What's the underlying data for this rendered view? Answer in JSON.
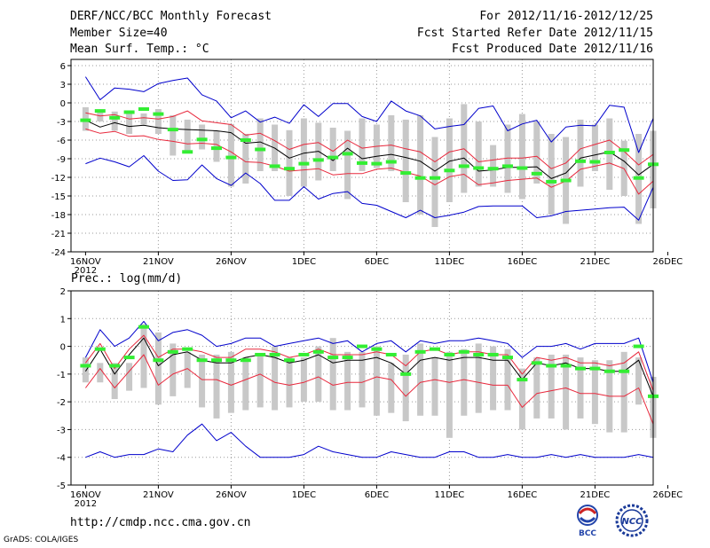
{
  "header": {
    "title": "DERF/NCC/BCC Monthly Forecast",
    "member_size": "Member Size=40",
    "period": "For 2012/11/16-2012/12/25",
    "started": "Fcst Started Refer Date 2012/11/15",
    "variable": "Mean Surf. Temp.: °C",
    "produced": "Fcst Produced Date 2012/11/16"
  },
  "footer": {
    "url": "http://cmdp.ncc.cma.gov.cn",
    "credit": "GrADS: COLA/IGES",
    "logo_bcc": "BCC",
    "logo_ncc": "NCC"
  },
  "colors": {
    "ensemble_mean": "#000000",
    "spread": "#e8283c",
    "extremes": "#0000cc",
    "member_box": "#c8c8c8",
    "median": "#33ee33",
    "grid": "#999999"
  },
  "chart_data": [
    {
      "type": "line",
      "title": "Mean Surf. Temp.: °C",
      "x_tick_labels": [
        "16NOV",
        "21NOV",
        "26NOV",
        "1DEC",
        "6DEC",
        "11DEC",
        "16DEC",
        "21DEC",
        "26DEC"
      ],
      "year_label": "2012",
      "ylim": [
        -24,
        7
      ],
      "y_ticks": [
        6,
        3,
        0,
        -3,
        -6,
        -9,
        -12,
        -15,
        -18,
        -21,
        -24
      ],
      "days": 40,
      "series": [
        {
          "name": "ensemble mean",
          "values": [
            -2.8,
            -3.9,
            -3.2,
            -3.8,
            -3.6,
            -4.0,
            -4.2,
            -4.3,
            -4.4,
            -4.5,
            -4.8,
            -6.5,
            -6.3,
            -7.3,
            -8.9,
            -8.1,
            -7.8,
            -9.3,
            -7.3,
            -9.0,
            -8.6,
            -8.3,
            -8.8,
            -9.4,
            -11.0,
            -9.4,
            -8.9,
            -11.0,
            -10.8,
            -10.4,
            -10.4,
            -10.3,
            -12.2,
            -11.3,
            -8.9,
            -8.4,
            -7.9,
            -9.4,
            -11.6,
            -9.9
          ]
        },
        {
          "name": "upper spread",
          "values": [
            -1.6,
            -2.1,
            -1.9,
            -2.6,
            -2.4,
            -2.6,
            -2.2,
            -1.3,
            -2.9,
            -3.2,
            -3.5,
            -5.2,
            -4.9,
            -6.1,
            -7.5,
            -6.7,
            -6.4,
            -7.8,
            -6.0,
            -7.3,
            -7.0,
            -6.8,
            -7.4,
            -7.9,
            -9.5,
            -7.9,
            -7.4,
            -9.5,
            -9.2,
            -8.9,
            -8.9,
            -8.6,
            -10.6,
            -9.7,
            -7.4,
            -6.7,
            -6.0,
            -7.8,
            -10.0,
            -8.3
          ]
        },
        {
          "name": "lower spread",
          "values": [
            -4.2,
            -4.9,
            -4.6,
            -5.4,
            -5.3,
            -5.9,
            -6.2,
            -6.6,
            -6.5,
            -6.7,
            -7.9,
            -9.5,
            -9.6,
            -10.2,
            -11.0,
            -10.8,
            -10.6,
            -11.6,
            -11.4,
            -11.4,
            -10.7,
            -10.5,
            -11.2,
            -11.8,
            -13.2,
            -11.9,
            -11.5,
            -13.2,
            -12.9,
            -12.5,
            -12.3,
            -12.1,
            -13.6,
            -12.6,
            -10.7,
            -10.2,
            -9.7,
            -10.6,
            -14.7,
            -12.6
          ]
        },
        {
          "name": "member maximum",
          "values": [
            4.2,
            0.5,
            2.4,
            2.2,
            1.8,
            3.1,
            3.6,
            4.0,
            1.3,
            0.3,
            -2.4,
            -1.3,
            -3.1,
            -2.3,
            -3.3,
            -0.3,
            -2.2,
            -0.1,
            -0.1,
            -2.2,
            -3.0,
            0.3,
            -1.3,
            -2.1,
            -4.2,
            -3.8,
            -3.5,
            -0.9,
            -0.5,
            -4.5,
            -3.4,
            -2.8,
            -6.3,
            -3.9,
            -3.6,
            -3.7,
            -0.4,
            -0.7,
            -8.0,
            -2.5
          ]
        },
        {
          "name": "member minimum",
          "values": [
            -9.8,
            -8.9,
            -9.5,
            -10.3,
            -8.5,
            -11.0,
            -12.5,
            -12.4,
            -10.0,
            -12.2,
            -13.3,
            -11.3,
            -13.0,
            -15.7,
            -15.7,
            -13.5,
            -15.5,
            -14.6,
            -14.3,
            -16.2,
            -16.5,
            -17.5,
            -18.5,
            -17.3,
            -18.5,
            -18.1,
            -17.6,
            -16.7,
            -16.6,
            -16.6,
            -16.6,
            -18.5,
            -18.2,
            -17.5,
            -17.3,
            -17.1,
            -16.9,
            -16.8,
            -18.9,
            -13.6
          ]
        }
      ],
      "boxes": {
        "top": [
          -0.7,
          -1.5,
          -1.4,
          -1.4,
          -1.7,
          -1.0,
          -2.0,
          -2.7,
          -3.5,
          -4.5,
          -3.4,
          -5.0,
          -2.5,
          -3.5,
          -4.4,
          -2.5,
          -3.2,
          -4.0,
          -4.5,
          -2.5,
          -3.5,
          -2.0,
          -2.7,
          -2.0,
          -5.5,
          -2.5,
          -0.2,
          -3.0,
          -6.8,
          -3.5,
          -1.8,
          -3.0,
          -5.0,
          -5.5,
          -2.7,
          -3.5,
          -2.5,
          -6.1,
          -5.0,
          -4.5
        ],
        "bottom": [
          -4.5,
          -3.0,
          -4.5,
          -5.0,
          -3.5,
          -5.0,
          -8.5,
          -8.0,
          -7.5,
          -9.5,
          -13.5,
          -13.0,
          -11.0,
          -11.0,
          -15.0,
          -13.5,
          -12.5,
          -11.0,
          -15.5,
          -11.0,
          -10.5,
          -11.0,
          -16.0,
          -18.0,
          -20.0,
          -16.0,
          -14.5,
          -13.5,
          -13.5,
          -14.5,
          -15.5,
          -13.0,
          -18.0,
          -19.5,
          -13.5,
          -11.0,
          -14.0,
          -15.0,
          -19.5,
          -17.0
        ],
        "median": [
          -2.8,
          -1.3,
          -2.4,
          -1.5,
          -1.0,
          -1.8,
          -4.3,
          -7.9,
          -5.9,
          -7.3,
          -8.8,
          -6.0,
          -7.5,
          -10.2,
          -10.6,
          -9.8,
          -9.2,
          -8.8,
          -8.2,
          -9.7,
          -9.8,
          -9.5,
          -11.3,
          -12.1,
          -12.1,
          -10.9,
          -10.2,
          -10.5,
          -10.6,
          -10.2,
          -10.5,
          -11.4,
          -12.7,
          -12.5,
          -9.4,
          -9.5,
          -8.0,
          -7.6,
          -12.1,
          -9.9
        ]
      }
    },
    {
      "type": "line",
      "title": "Prec.: log(mm/d)",
      "x_tick_labels": [
        "16NOV",
        "21NOV",
        "26NOV",
        "1DEC",
        "6DEC",
        "11DEC",
        "16DEC",
        "21DEC",
        "26DEC"
      ],
      "year_label": "2012",
      "ylim": [
        -5,
        2
      ],
      "y_ticks": [
        2,
        1,
        0,
        -1,
        -2,
        -3,
        -4,
        -5
      ],
      "days": 40,
      "series": [
        {
          "name": "ensemble mean",
          "values": [
            -0.9,
            -0.1,
            -1.0,
            -0.3,
            0.3,
            -0.7,
            -0.3,
            -0.2,
            -0.5,
            -0.6,
            -0.6,
            -0.4,
            -0.3,
            -0.4,
            -0.6,
            -0.5,
            -0.3,
            -0.6,
            -0.5,
            -0.5,
            -0.4,
            -0.6,
            -1.0,
            -0.5,
            -0.4,
            -0.5,
            -0.4,
            -0.4,
            -0.5,
            -0.5,
            -1.2,
            -0.6,
            -0.7,
            -0.6,
            -0.8,
            -0.8,
            -0.9,
            -0.9,
            -0.5,
            -1.8
          ]
        },
        {
          "name": "upper spread",
          "values": [
            -0.6,
            0.1,
            -0.8,
            -0.1,
            0.4,
            -0.4,
            -0.1,
            -0.1,
            -0.2,
            -0.4,
            -0.4,
            -0.1,
            -0.1,
            -0.2,
            -0.4,
            -0.3,
            -0.1,
            -0.3,
            -0.3,
            -0.3,
            -0.2,
            -0.3,
            -0.7,
            -0.2,
            -0.1,
            -0.3,
            -0.2,
            -0.2,
            -0.3,
            -0.3,
            -1.0,
            -0.4,
            -0.5,
            -0.4,
            -0.6,
            -0.6,
            -0.7,
            -0.6,
            -0.2,
            -1.6
          ]
        },
        {
          "name": "lower spread",
          "values": [
            -1.5,
            -0.8,
            -1.5,
            -0.9,
            -0.3,
            -1.4,
            -1.0,
            -0.8,
            -1.2,
            -1.2,
            -1.4,
            -1.2,
            -1.0,
            -1.3,
            -1.4,
            -1.3,
            -1.1,
            -1.4,
            -1.3,
            -1.3,
            -1.1,
            -1.2,
            -1.8,
            -1.3,
            -1.2,
            -1.3,
            -1.2,
            -1.3,
            -1.4,
            -1.4,
            -2.2,
            -1.7,
            -1.6,
            -1.5,
            -1.7,
            -1.7,
            -1.8,
            -1.8,
            -1.5,
            -2.8
          ]
        },
        {
          "name": "member maximum",
          "values": [
            -0.4,
            0.6,
            0.0,
            0.3,
            0.9,
            0.2,
            0.5,
            0.6,
            0.4,
            0.0,
            0.1,
            0.3,
            0.3,
            0.0,
            0.1,
            0.2,
            0.3,
            0.1,
            0.2,
            -0.2,
            0.1,
            0.2,
            -0.2,
            0.2,
            0.1,
            0.2,
            0.2,
            0.3,
            0.2,
            0.1,
            -0.4,
            0.0,
            0.0,
            0.1,
            -0.1,
            0.1,
            0.1,
            0.1,
            0.3,
            -1.3
          ]
        },
        {
          "name": "member minimum",
          "values": [
            -4.0,
            -3.8,
            -4.0,
            -3.9,
            -3.9,
            -3.7,
            -3.8,
            -3.2,
            -2.8,
            -3.4,
            -3.1,
            -3.6,
            -4.0,
            -4.0,
            -4.0,
            -3.9,
            -3.6,
            -3.8,
            -3.9,
            -4.0,
            -4.0,
            -3.8,
            -3.9,
            -4.0,
            -4.0,
            -3.8,
            -3.8,
            -4.0,
            -4.0,
            -3.9,
            -4.0,
            -4.0,
            -3.9,
            -4.0,
            -3.9,
            -4.0,
            -4.0,
            -4.0,
            -3.9,
            -4.0
          ]
        }
      ],
      "boxes": {
        "top": [
          -0.4,
          -0.6,
          -0.6,
          -0.6,
          0.8,
          0.5,
          0.1,
          -0.2,
          -0.3,
          -0.3,
          -0.2,
          -0.4,
          -0.3,
          0.0,
          -0.4,
          -0.4,
          0.0,
          0.3,
          -0.2,
          -0.2,
          0.0,
          -0.6,
          -0.3,
          0.1,
          -0.4,
          -0.2,
          -0.1,
          0.1,
          0.0,
          -0.1,
          -0.8,
          -0.4,
          -0.3,
          -0.3,
          -0.4,
          -0.5,
          -0.5,
          -0.2,
          -0.4,
          -1.1
        ],
        "bottom": [
          -1.3,
          -1.3,
          -1.9,
          -1.6,
          -1.5,
          -2.1,
          -1.8,
          -1.5,
          -2.2,
          -2.6,
          -2.4,
          -2.3,
          -2.2,
          -2.3,
          -2.2,
          -2.0,
          -2.0,
          -2.3,
          -2.3,
          -2.2,
          -2.5,
          -2.4,
          -2.7,
          -2.5,
          -2.5,
          -3.3,
          -2.5,
          -2.4,
          -2.3,
          -2.3,
          -3.0,
          -2.6,
          -2.6,
          -3.0,
          -2.6,
          -2.8,
          -3.1,
          -3.1,
          -2.1,
          -3.3
        ],
        "median": [
          -0.7,
          -0.1,
          -0.7,
          -0.4,
          0.7,
          -0.5,
          -0.2,
          -0.1,
          -0.5,
          -0.5,
          -0.5,
          -0.5,
          -0.3,
          -0.3,
          -0.5,
          -0.3,
          -0.2,
          -0.4,
          -0.4,
          0.0,
          -0.1,
          -0.3,
          -1.0,
          -0.2,
          -0.1,
          -0.3,
          -0.2,
          -0.3,
          -0.3,
          -0.4,
          -1.2,
          -0.6,
          -0.7,
          -0.7,
          -0.8,
          -0.8,
          -0.9,
          -0.9,
          0.0,
          -1.8
        ]
      }
    }
  ]
}
